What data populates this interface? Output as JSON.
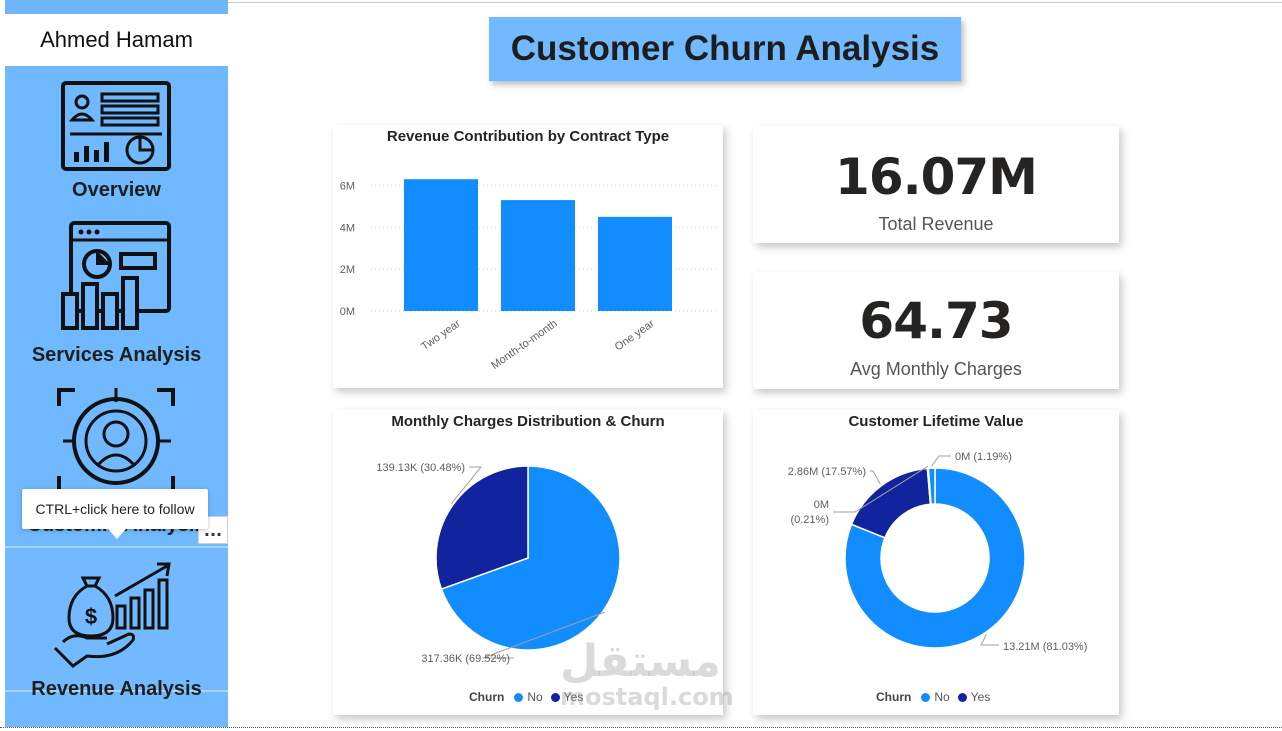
{
  "sidebar": {
    "author": "Ahmed Hamam",
    "items": [
      {
        "label": "Overview",
        "icon": "dashboard-icon"
      },
      {
        "label": "Services Analysis",
        "icon": "web-analytics-icon"
      },
      {
        "label": "Customer Analysis",
        "icon": "customer-target-icon",
        "visible_label": "Custom... Analys..."
      },
      {
        "label": "Revenue Analysis",
        "icon": "money-growth-icon"
      }
    ],
    "tooltip": "CTRL+click here to follow",
    "ellipsis": "..."
  },
  "header": {
    "title": "Customer Churn Analysis"
  },
  "kpis": {
    "revenue": {
      "value": "16.07M",
      "label": "Total Revenue"
    },
    "monthly": {
      "value": "64.73",
      "label": "Avg Monthly Charges"
    }
  },
  "colors": {
    "accent": "#118dff",
    "dark": "#12239e",
    "sidebar": "#70b8ff"
  },
  "watermark": {
    "arabic": "مستقل",
    "latin": "mostaql.com"
  },
  "chart_data": [
    {
      "type": "bar",
      "title": "Revenue Contribution by Contract Type",
      "categories": [
        "Two year",
        "Month-to-month",
        "One year"
      ],
      "values": [
        6.3,
        5.3,
        4.5
      ],
      "unit": "M",
      "ylim": [
        0,
        6.5
      ],
      "yticks": [
        "0M",
        "2M",
        "4M",
        "6M"
      ],
      "ytick_values": [
        0,
        2,
        4,
        6
      ],
      "grid": true
    },
    {
      "type": "pie",
      "title": "Monthly Charges Distribution & Churn",
      "legend_title": "Churn",
      "slices": [
        {
          "name": "No",
          "value": 317.36,
          "label": "317.36K (69.52%)",
          "color": "#118dff"
        },
        {
          "name": "Yes",
          "value": 139.13,
          "label": "139.13K (30.48%)",
          "color": "#12239e"
        }
      ]
    },
    {
      "type": "pie",
      "donut": true,
      "title": "Customer Lifetime Value",
      "legend_title": "Churn",
      "slices": [
        {
          "name": "No",
          "value": 13.21,
          "label": "13.21M (81.03%)",
          "color": "#118dff"
        },
        {
          "name": "Yes",
          "value": 2.86,
          "label": "2.86M (17.57%)",
          "color": "#12239e"
        },
        {
          "name": "",
          "value": 0.03,
          "label": "0M (0.21%)",
          "color": "#ffffff"
        },
        {
          "name": "",
          "value": 0.19,
          "label": "0M (1.19%)",
          "color": "#118dff"
        }
      ]
    }
  ]
}
